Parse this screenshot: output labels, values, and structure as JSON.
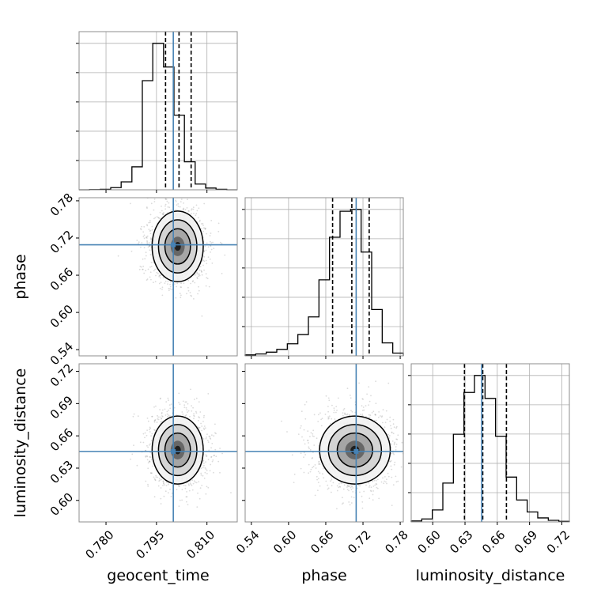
{
  "chart_data": {
    "type": "corner",
    "parameters": [
      {
        "name": "geocent_time",
        "range": [
          0.772,
          0.819
        ],
        "ticks": [
          0.78,
          0.795,
          0.81
        ],
        "tick_labels": [
          "0.780",
          "0.795",
          "0.810"
        ],
        "truth": 0.8,
        "quantiles": [
          0.7977,
          0.8017,
          0.8053
        ]
      },
      {
        "name": "phase",
        "range": [
          0.53,
          0.785
        ],
        "ticks": [
          0.54,
          0.6,
          0.66,
          0.72,
          0.78
        ],
        "tick_labels": [
          "0.54",
          "0.60",
          "0.66",
          "0.72",
          "0.78"
        ],
        "truth": 0.709,
        "quantiles": [
          0.671,
          0.702,
          0.73
        ]
      },
      {
        "name": "luminosity_distance",
        "range": [
          0.58,
          0.727
        ],
        "ticks": [
          0.6,
          0.63,
          0.66,
          0.69,
          0.72
        ],
        "tick_labels": [
          "0.60",
          "0.63",
          "0.66",
          "0.69",
          "0.72"
        ],
        "truth": 0.6455,
        "quantiles": [
          0.6295,
          0.6465,
          0.6685
        ]
      }
    ],
    "histograms": [
      {
        "parameter": "geocent_time",
        "bin_edges": [
          0.772,
          0.7751,
          0.7783,
          0.7814,
          0.7845,
          0.7877,
          0.7908,
          0.7939,
          0.7971,
          0.8002,
          0.8033,
          0.8065,
          0.8096,
          0.8127,
          0.8159,
          0.819
        ],
        "counts": [
          0,
          1,
          3,
          15,
          55,
          160,
          760,
          1020,
          855,
          520,
          195,
          40,
          12,
          3,
          0
        ]
      },
      {
        "parameter": "phase",
        "bin_edges": [
          0.53,
          0.547,
          0.564,
          0.581,
          0.598,
          0.615,
          0.632,
          0.649,
          0.666,
          0.683,
          0.7,
          0.717,
          0.734,
          0.751,
          0.768,
          0.785
        ],
        "counts": [
          5,
          10,
          20,
          35,
          65,
          115,
          210,
          410,
          640,
          780,
          790,
          560,
          250,
          70,
          15
        ]
      },
      {
        "parameter": "luminosity_distance",
        "bin_edges": [
          0.58,
          0.5898,
          0.5996,
          0.6094,
          0.6192,
          0.629,
          0.6388,
          0.6486,
          0.6584,
          0.6682,
          0.678,
          0.6878,
          0.6976,
          0.7074,
          0.7172,
          0.727
        ],
        "counts": [
          5,
          15,
          60,
          195,
          440,
          650,
          735,
          620,
          430,
          225,
          110,
          50,
          20,
          8,
          3
        ]
      }
    ],
    "pairs": [
      {
        "x": "geocent_time",
        "y": "phase",
        "center": [
          0.8013,
          0.7065
        ],
        "sigma": [
          0.0038,
          0.0285
        ]
      },
      {
        "x": "geocent_time",
        "y": "luminosity_distance",
        "center": [
          0.8013,
          0.6468
        ],
        "sigma": [
          0.0038,
          0.0158
        ]
      },
      {
        "x": "phase",
        "y": "luminosity_distance",
        "center": [
          0.707,
          0.6468
        ],
        "sigma": [
          0.0285,
          0.0158
        ]
      }
    ],
    "grid": true,
    "truth_color": "#4682b4",
    "contour_color": "#000000",
    "sample_color": "#7f7f7f"
  }
}
